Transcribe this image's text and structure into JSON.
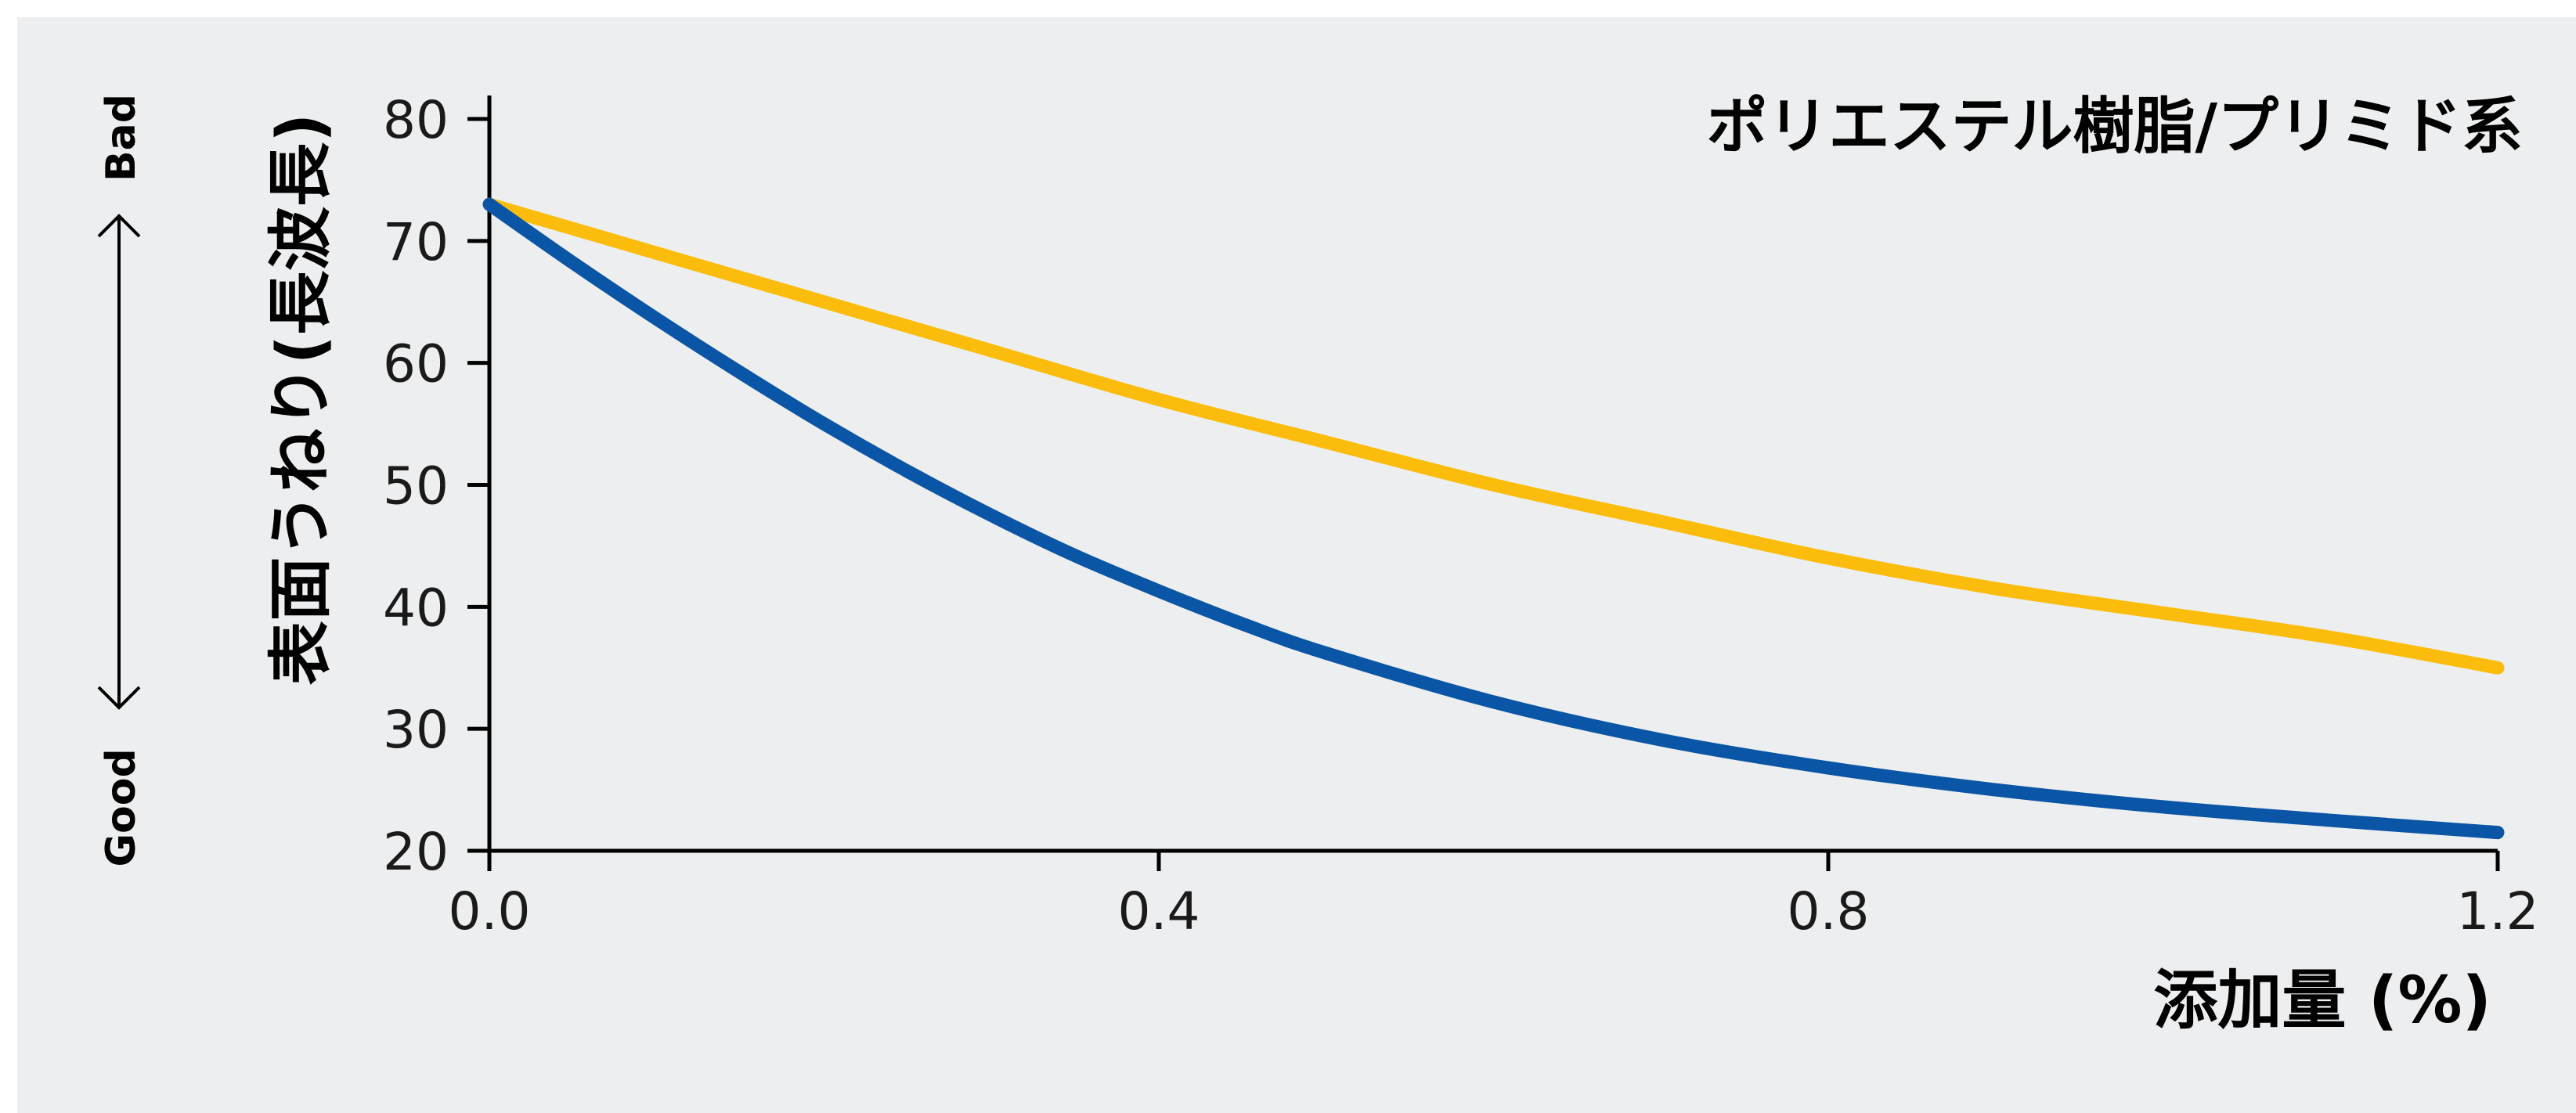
{
  "chart_data": {
    "type": "line",
    "title": "ポリエステル樹脂/プリミド系",
    "xlabel": "添加量 (%)",
    "ylabel": "表面うねり(長波長)",
    "xlim": [
      0.0,
      1.2
    ],
    "ylim": [
      20,
      80
    ],
    "x_ticks": [
      "0.0",
      "0.4",
      "0.8",
      "1.2"
    ],
    "y_ticks": [
      "20",
      "30",
      "40",
      "50",
      "60",
      "70",
      "80"
    ],
    "grid": false,
    "legend": "none",
    "indicator": {
      "top_label": "Bad",
      "bottom_label": "Good"
    },
    "series": [
      {
        "color": "#fbbc0b",
        "x": [
          0.0,
          0.1,
          0.2,
          0.3,
          0.4,
          0.5,
          0.6,
          0.7,
          0.8,
          0.9,
          1.0,
          1.1,
          1.2
        ],
        "y": [
          73,
          69,
          65,
          61,
          57,
          53.5,
          50,
          47,
          44,
          41.5,
          39.5,
          37.5,
          35
        ]
      },
      {
        "color": "#0b55a6",
        "x": [
          0.0,
          0.05,
          0.1,
          0.15,
          0.2,
          0.25,
          0.3,
          0.35,
          0.4,
          0.45,
          0.5,
          0.6,
          0.7,
          0.8,
          0.9,
          1.0,
          1.1,
          1.2
        ],
        "y": [
          73,
          68.2,
          63.6,
          59.2,
          55,
          51.1,
          47.5,
          44.2,
          41.3,
          38.6,
          36.2,
          32.2,
          29.1,
          26.8,
          25,
          23.6,
          22.5,
          21.5
        ]
      }
    ]
  },
  "colors": {
    "background": "#edeeef",
    "axis": "#000000"
  }
}
